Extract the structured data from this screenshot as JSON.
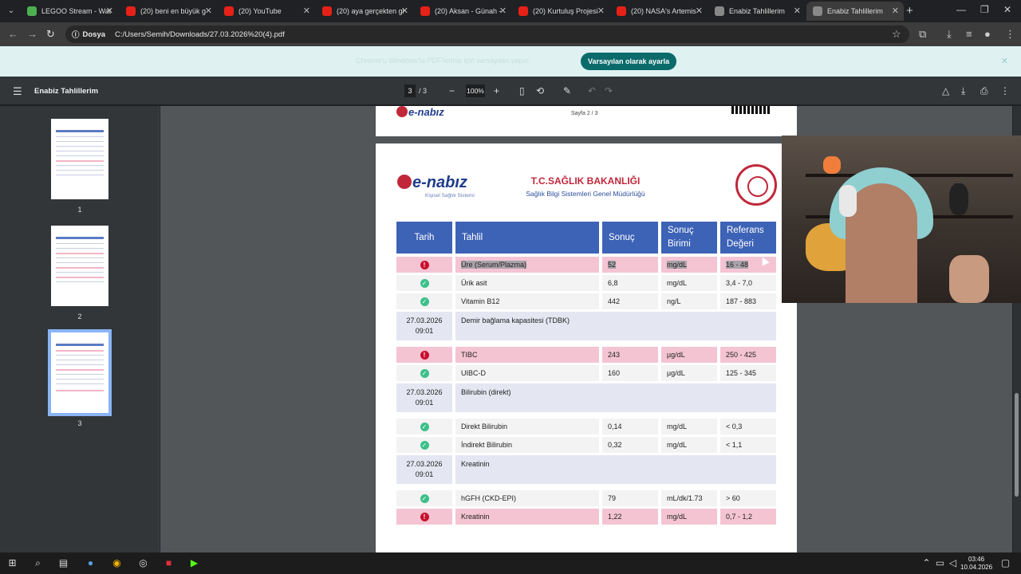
{
  "browser": {
    "tabs": [
      {
        "label": "LEGOO Stream - Wat",
        "color": "#4caf50"
      },
      {
        "label": "(20) beni en büyük g",
        "color": "#e62117"
      },
      {
        "label": "(20) YouTube",
        "color": "#e62117"
      },
      {
        "label": "(20) aya gerçekten gi",
        "color": "#e62117"
      },
      {
        "label": "(20) Aksan - Günah -",
        "color": "#e62117"
      },
      {
        "label": "(20) Kurtuluş Projesi",
        "color": "#e62117"
      },
      {
        "label": "(20) NASA's Artemis",
        "color": "#e62117"
      },
      {
        "label": "Enabiz Tahlillerim",
        "color": "#888888"
      },
      {
        "label": "Enabiz Tahlillerim",
        "color": "#888888"
      }
    ],
    "address_chip": "Dosya",
    "address": "C:/Users/Semih/Downloads/27.03.2026%20(4).pdf"
  },
  "infobar": {
    "message": "Chrome'u Windows'ta PDF'leriniz için varsayılan yapın",
    "button": "Varsayılan olarak ayarla"
  },
  "pdf": {
    "title": "Enabiz Tahlillerim",
    "page_current": "3",
    "page_total": "/  3",
    "zoom": "100%",
    "thumbnails": [
      "1",
      "2",
      "3"
    ],
    "prev_page_footer": "Sayfa 2 / 3",
    "logo_text": "e-nabız",
    "logo_sub": "Kişisel Sağlık Sistemi",
    "ministry_title": "T.C.SAĞLIK BAKANLIĞI",
    "ministry_sub": "Sağlık Bilgi Sistemleri Genel Müdürlüğü",
    "headers": [
      "Tarih",
      "Tahlil",
      "Sonuç",
      "Sonuç Birimi",
      "Referans Değeri"
    ],
    "rows": [
      {
        "status": "alert",
        "date": "",
        "test": "Üre (Serum/Plazma)",
        "result": "52",
        "unit": "mg/dL",
        "ref": "16 - 48"
      },
      {
        "status": "ok",
        "date": "",
        "test": "Ürik asit",
        "result": "6,8",
        "unit": "mg/dL",
        "ref": "3,4 - 7,0"
      },
      {
        "status": "ok",
        "date": "",
        "test": "Vitamin B12",
        "result": "442",
        "unit": "ng/L",
        "ref": "187 - 883"
      },
      {
        "status": "group",
        "date": "27.03.2026 09:01",
        "test": "Demir bağlama kapasitesi (TDBK)",
        "result": "",
        "unit": "",
        "ref": ""
      },
      {
        "status": "alert",
        "date": "",
        "test": "TIBC",
        "result": "243",
        "unit": "µg/dL",
        "ref": "250 - 425"
      },
      {
        "status": "ok",
        "date": "",
        "test": "UIBC-D",
        "result": "160",
        "unit": "µg/dL",
        "ref": "125 - 345"
      },
      {
        "status": "group",
        "date": "27.03.2026 09:01",
        "test": "Bilirubin (direkt)",
        "result": "",
        "unit": "",
        "ref": ""
      },
      {
        "status": "ok",
        "date": "",
        "test": "Direkt Bilirubin",
        "result": "0,14",
        "unit": "mg/dL",
        "ref": "< 0,3"
      },
      {
        "status": "ok",
        "date": "",
        "test": "İndirekt Bilirubin",
        "result": "0,32",
        "unit": "mg/dL",
        "ref": "< 1,1"
      },
      {
        "status": "group",
        "date": "27.03.2026 09:01",
        "test": "Kreatinin",
        "result": "",
        "unit": "",
        "ref": ""
      },
      {
        "status": "ok",
        "date": "",
        "test": "hGFH (CKD-EPI)",
        "result": "79",
        "unit": "mL/dk/1.73",
        "ref": "> 60"
      },
      {
        "status": "alert",
        "date": "",
        "test": "Kreatinin",
        "result": "1,22",
        "unit": "mg/dL",
        "ref": "0,7 - 1,2"
      }
    ]
  },
  "taskbar": {
    "time": "03:46",
    "date": "10.04.2026"
  }
}
